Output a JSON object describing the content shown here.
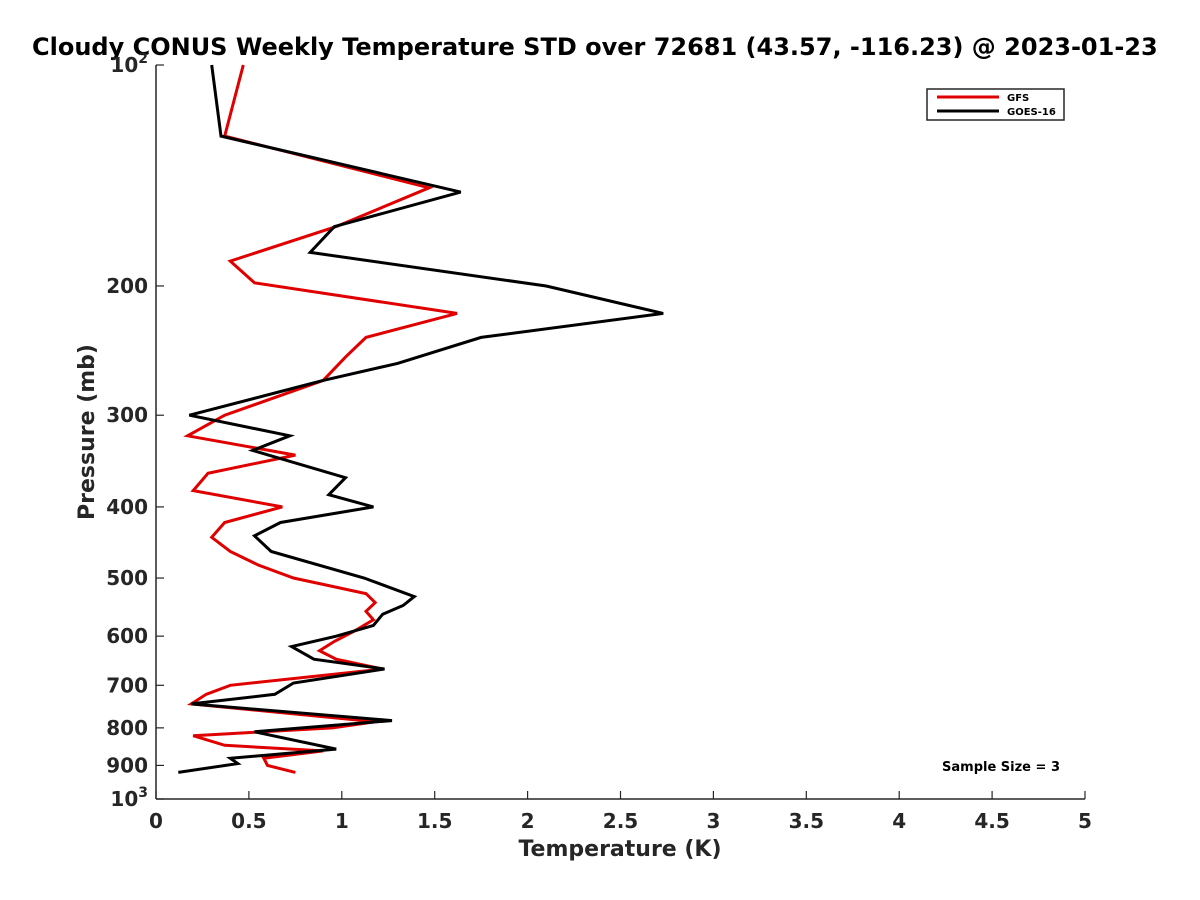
{
  "chart_data": {
    "type": "line",
    "title": "Cloudy CONUS Weekly Temperature STD over 72681 (43.57, -116.23) @ 2023-01-23",
    "xlabel": "Temperature (K)",
    "ylabel": "Pressure (mb)",
    "xlim": [
      0,
      5
    ],
    "ylim": [
      100,
      1000
    ],
    "yscale": "log",
    "y_reversed": true,
    "x_ticks": [
      "0",
      "0.5",
      "1",
      "1.5",
      "2",
      "2.5",
      "3",
      "3.5",
      "4",
      "4.5",
      "5"
    ],
    "y_ticks": [
      {
        "value": 100,
        "base": "10",
        "exp": "2"
      },
      {
        "value": 200,
        "label": "200"
      },
      {
        "value": 300,
        "label": "300"
      },
      {
        "value": 400,
        "label": "400"
      },
      {
        "value": 500,
        "label": "500"
      },
      {
        "value": 600,
        "label": "600"
      },
      {
        "value": 700,
        "label": "700"
      },
      {
        "value": 800,
        "label": "800"
      },
      {
        "value": 900,
        "label": "900"
      },
      {
        "value": 1000,
        "base": "10",
        "exp": "3"
      }
    ],
    "grid": false,
    "legend_position": "top-right",
    "series": [
      {
        "name": "GFS",
        "color": "#e00000",
        "points": [
          [
            0.47,
            100
          ],
          [
            0.37,
            125
          ],
          [
            1.47,
            147
          ],
          [
            0.97,
            166
          ],
          [
            0.4,
            185
          ],
          [
            0.53,
            198
          ],
          [
            1.62,
            218
          ],
          [
            1.13,
            235
          ],
          [
            1.02,
            250
          ],
          [
            0.9,
            269
          ],
          [
            0.37,
            300
          ],
          [
            0.17,
            320
          ],
          [
            0.75,
            340
          ],
          [
            0.28,
            360
          ],
          [
            0.2,
            380
          ],
          [
            0.68,
            400
          ],
          [
            0.37,
            420
          ],
          [
            0.3,
            440
          ],
          [
            0.4,
            460
          ],
          [
            0.55,
            480
          ],
          [
            0.74,
            500
          ],
          [
            1.13,
            525
          ],
          [
            1.18,
            540
          ],
          [
            1.13,
            555
          ],
          [
            1.17,
            570
          ],
          [
            1.07,
            590
          ],
          [
            0.96,
            610
          ],
          [
            0.88,
            628
          ],
          [
            0.97,
            645
          ],
          [
            1.22,
            665
          ],
          [
            0.4,
            700
          ],
          [
            0.27,
            720
          ],
          [
            0.19,
            742
          ],
          [
            1.18,
            785
          ],
          [
            0.95,
            800
          ],
          [
            0.2,
            820
          ],
          [
            0.37,
            845
          ],
          [
            0.9,
            860
          ],
          [
            0.58,
            880
          ],
          [
            0.6,
            900
          ],
          [
            0.75,
            920
          ]
        ]
      },
      {
        "name": "GOES-16",
        "color": "#000000",
        "points": [
          [
            0.3,
            100
          ],
          [
            0.35,
            125
          ],
          [
            1.64,
            149
          ],
          [
            0.96,
            166
          ],
          [
            0.83,
            180
          ],
          [
            2.1,
            200
          ],
          [
            2.73,
            218
          ],
          [
            1.75,
            235
          ],
          [
            1.3,
            255
          ],
          [
            0.9,
            269
          ],
          [
            0.18,
            300
          ],
          [
            0.72,
            320
          ],
          [
            0.52,
            335
          ],
          [
            1.02,
            365
          ],
          [
            0.93,
            385
          ],
          [
            1.17,
            400
          ],
          [
            0.67,
            420
          ],
          [
            0.53,
            438
          ],
          [
            0.62,
            460
          ],
          [
            1.12,
            500
          ],
          [
            1.39,
            530
          ],
          [
            1.33,
            545
          ],
          [
            1.22,
            560
          ],
          [
            1.17,
            580
          ],
          [
            0.97,
            600
          ],
          [
            0.73,
            620
          ],
          [
            0.85,
            645
          ],
          [
            1.23,
            665
          ],
          [
            0.74,
            695
          ],
          [
            0.64,
            720
          ],
          [
            0.19,
            742
          ],
          [
            1.27,
            782
          ],
          [
            0.53,
            810
          ],
          [
            0.97,
            855
          ],
          [
            0.4,
            880
          ],
          [
            0.44,
            895
          ],
          [
            0.12,
            920
          ]
        ]
      }
    ],
    "annotations": [
      {
        "text": "Sample Size = 3",
        "position": "bottom-right"
      }
    ]
  }
}
